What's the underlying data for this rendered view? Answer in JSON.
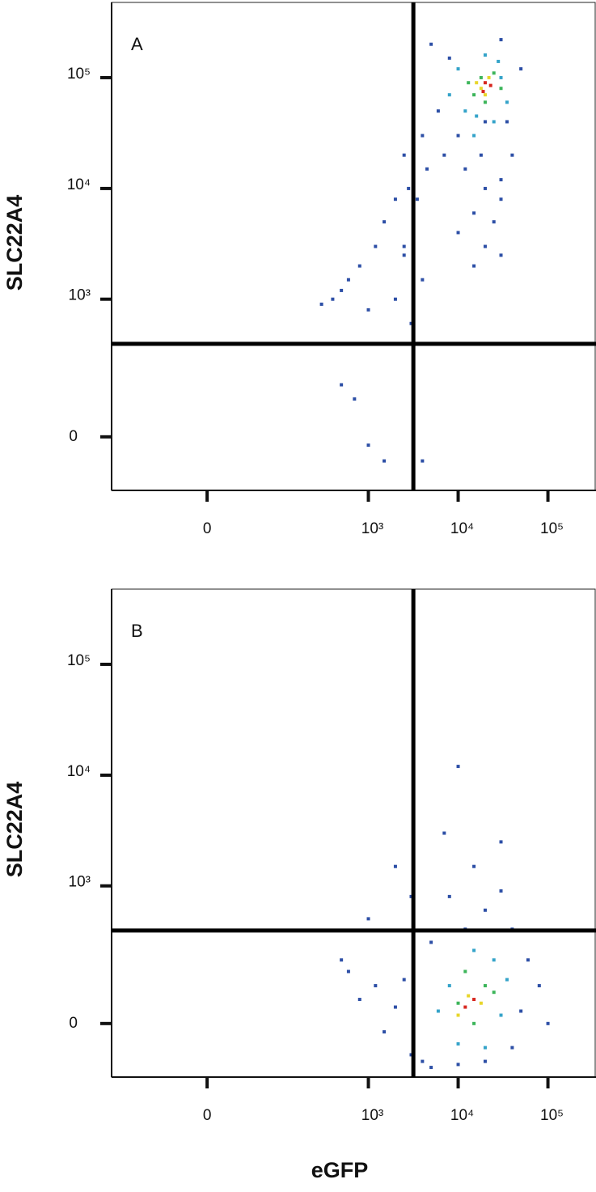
{
  "chart_data": [
    {
      "type": "scatter",
      "panel_label": "A",
      "y_label": "SLC22A4",
      "scale": "biexponential",
      "xlim": [
        -184,
        343000
      ],
      "ylim": [
        -156,
        477000
      ],
      "xticks": [
        0,
        {
          "value": 1000,
          "label": "10³"
        },
        {
          "value": 10000,
          "label": "10⁴"
        },
        {
          "value": 100000,
          "label": "10⁵"
        }
      ],
      "yticks": [
        0,
        {
          "value": 1000,
          "label": "10³"
        },
        {
          "value": 10000,
          "label": "10⁴"
        },
        {
          "value": 100000,
          "label": "10⁵"
        }
      ],
      "gates": {
        "x": 3170,
        "y": 389
      },
      "series": [
        {
          "color": "#2d4fa6",
          "x": [
            5000,
            8000,
            30000,
            50000,
            6000,
            4000,
            7000,
            12000,
            20000,
            30000,
            15000,
            25000,
            10000,
            20000,
            30000,
            15000,
            2500,
            2000,
            1500,
            1200,
            800,
            600,
            500,
            400,
            300,
            1000,
            2000,
            2500,
            2800,
            3500,
            4500,
            4000,
            3000,
            500,
            700,
            1000,
            1500,
            4000,
            20000,
            35000,
            18000,
            30000,
            40000,
            10000,
            2500
          ],
          "values": [
            200000,
            150000,
            220000,
            120000,
            50000,
            30000,
            20000,
            15000,
            10000,
            8000,
            6000,
            5000,
            4000,
            3000,
            2500,
            2000,
            20000,
            8000,
            5000,
            3000,
            2000,
            1500,
            1200,
            1000,
            900,
            800,
            1000,
            2500,
            10000,
            8000,
            15000,
            1500,
            600,
            150,
            100,
            -20,
            -60,
            -60,
            40000,
            40000,
            20000,
            12000,
            20000,
            30000,
            3000
          ]
        },
        {
          "color": "#34a3c9",
          "x": [
            12000,
            25000,
            30000,
            10000,
            15000,
            20000,
            35000,
            8000,
            16000,
            28000
          ],
          "values": [
            50000,
            40000,
            100000,
            120000,
            30000,
            160000,
            60000,
            70000,
            45000,
            140000
          ]
        },
        {
          "color": "#3cb55a",
          "x": [
            15000,
            25000,
            20000,
            18000,
            30000,
            13000
          ],
          "values": [
            70000,
            110000,
            60000,
            100000,
            80000,
            90000
          ]
        },
        {
          "color": "#e8d62a",
          "x": [
            18000,
            22000,
            20000,
            16000
          ],
          "values": [
            80000,
            100000,
            70000,
            90000
          ]
        },
        {
          "color": "#d7261e",
          "x": [
            20000,
            19000,
            23000
          ],
          "values": [
            90000,
            75000,
            85000
          ]
        }
      ]
    },
    {
      "type": "scatter",
      "panel_label": "B",
      "y_label": "SLC22A4",
      "x_label": "eGFP",
      "scale": "biexponential",
      "xlim": [
        -184,
        343000
      ],
      "ylim": [
        -156,
        477000
      ],
      "xticks": [
        0,
        {
          "value": 1000,
          "label": "10³"
        },
        {
          "value": 10000,
          "label": "10⁴"
        },
        {
          "value": 100000,
          "label": "10⁵"
        }
      ],
      "yticks": [
        0,
        {
          "value": 1000,
          "label": "10³"
        },
        {
          "value": 10000,
          "label": "10⁴"
        },
        {
          "value": 100000,
          "label": "10⁵"
        }
      ],
      "gates": {
        "x": 3170,
        "y": 389
      },
      "series": [
        {
          "color": "#2d4fa6",
          "x": [
            5000,
            8000,
            15000,
            30000,
            20000,
            40000,
            60000,
            80000,
            100000,
            1200,
            800,
            600,
            1500,
            2000,
            2500,
            3000,
            4000,
            5000,
            10000,
            20000,
            40000,
            50000,
            10000,
            7000,
            2000,
            3000,
            1000,
            500,
            12000,
            30000
          ],
          "values": [
            300,
            800,
            1500,
            2500,
            600,
            400,
            200,
            100,
            0,
            100,
            60,
            150,
            -20,
            40,
            120,
            -80,
            -100,
            -120,
            -110,
            -100,
            -60,
            30,
            12000,
            3000,
            1500,
            800,
            500,
            200,
            400,
            900
          ]
        },
        {
          "color": "#34a3c9",
          "x": [
            8000,
            25000,
            10000,
            30000,
            15000,
            6000,
            20000,
            35000
          ],
          "values": [
            100,
            200,
            -50,
            20,
            250,
            30,
            -60,
            120
          ]
        },
        {
          "color": "#3cb55a",
          "x": [
            10000,
            20000,
            15000,
            25000,
            12000
          ],
          "values": [
            50,
            100,
            0,
            80,
            150
          ]
        },
        {
          "color": "#e8d62a",
          "x": [
            13000,
            18000,
            10000
          ],
          "values": [
            70,
            50,
            20
          ]
        },
        {
          "color": "#d7261e",
          "x": [
            12000,
            15000
          ],
          "values": [
            40,
            60
          ]
        }
      ]
    }
  ]
}
